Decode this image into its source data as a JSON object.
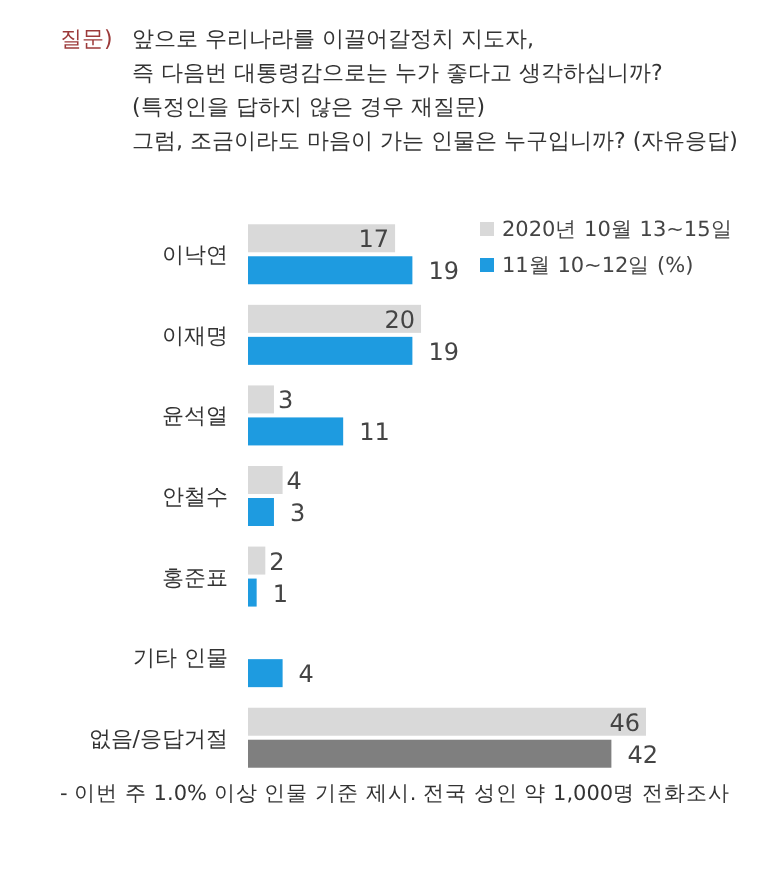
{
  "chart_data": {
    "type": "bar",
    "orientation": "horizontal",
    "title": "질문)",
    "subtitle": "앞으로 우리나라를 이끌어갈정치 지도자,\n즉 다음번 대통령감으로는 누가 좋다고 생각하십니까?\n(특정인을 답하지 않은 경우 재질문)\n그럼, 조금이라도 마음이 가는 인물은 누구입니까? (자유응답)",
    "categories": [
      "이낙연",
      "이재명",
      "윤석열",
      "안철수",
      "홍준표",
      "기타 인물",
      "없음/응답거절"
    ],
    "series": [
      {
        "name": "2020년 10월 13~15일",
        "color": "#d9d9d9",
        "values": [
          17,
          20,
          3,
          4,
          2,
          null,
          46
        ]
      },
      {
        "name": "11월 10~12일 (%)",
        "color": "#1e9be0",
        "colors": [
          "#1e9be0",
          "#1e9be0",
          "#1e9be0",
          "#1e9be0",
          "#1e9be0",
          "#1e9be0",
          "#7f7f7f"
        ],
        "values": [
          19,
          19,
          11,
          3,
          1,
          4,
          42
        ]
      }
    ],
    "data_labels": true,
    "legend": "top right",
    "annotations": [
      "- 이번 주 1.0% 이상 인물 기준 제시. 전국 성인 약 1,000명 전화조사"
    ]
  }
}
